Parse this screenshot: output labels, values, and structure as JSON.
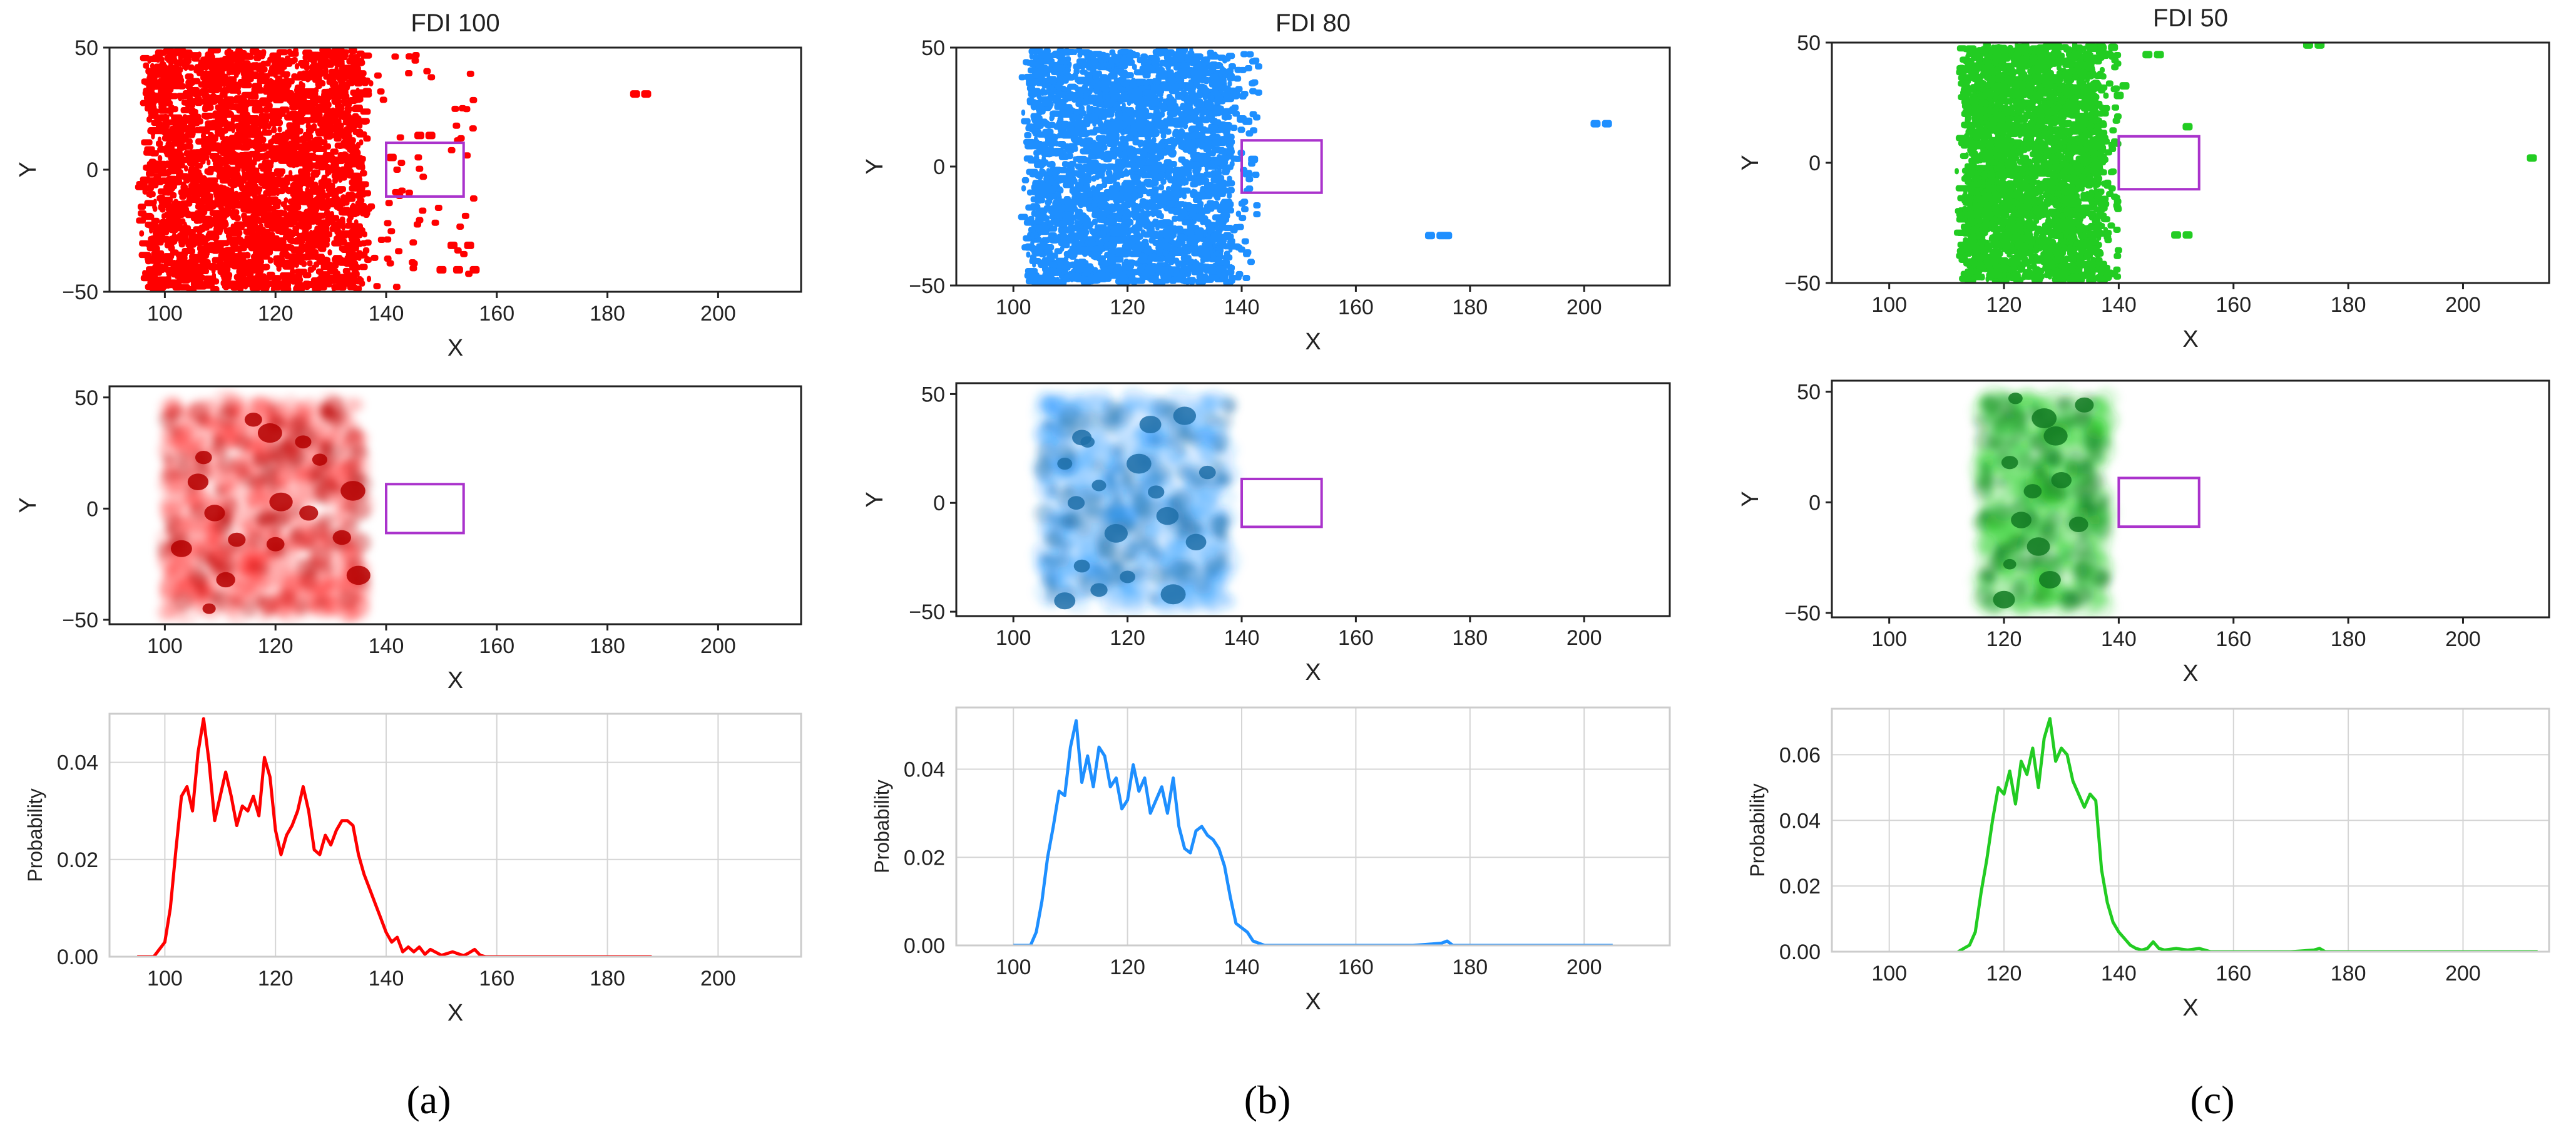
{
  "colors": {
    "red": "#ff0000",
    "blue": "#1e8fff",
    "green": "#22cc22",
    "darkred": "#b40000",
    "darkblue": "#1f6fa8",
    "darkgreen": "#127a22",
    "rect": "#aa33cc"
  },
  "chart_data": [
    {
      "panel": "a",
      "panel_label": "(a)",
      "color": "red",
      "type": "scatter",
      "title": "FDI 100",
      "xlabel": "X",
      "ylabel": "Y",
      "xlim": [
        90,
        215
      ],
      "ylim": [
        -50,
        50
      ],
      "xticks": [
        "100",
        "120",
        "140",
        "160",
        "180",
        "200"
      ],
      "yticks": [
        "50",
        "0",
        "−50"
      ],
      "main_x_range": [
        97,
        136
      ],
      "outlier_x_max": 156,
      "outliers": [
        [
          185,
          31
        ],
        [
          187,
          31
        ],
        [
          146,
          14
        ],
        [
          148,
          14
        ],
        [
          150,
          -41
        ],
        [
          153,
          -41
        ],
        [
          156,
          -41
        ],
        [
          155,
          -31
        ],
        [
          152,
          -31
        ],
        [
          141,
          5
        ]
      ],
      "box": {
        "x": [
          140,
          154
        ],
        "y": [
          -11,
          11
        ]
      }
    },
    {
      "panel": "a",
      "color": "red",
      "type": "heatmap",
      "xlabel": "X",
      "ylabel": "Y",
      "xlim": [
        90,
        215
      ],
      "ylim": [
        -52,
        55
      ],
      "xticks": [
        "100",
        "120",
        "140",
        "160",
        "180",
        "200"
      ],
      "yticks": [
        "50",
        "0",
        "−50"
      ],
      "main_x_range": [
        100,
        136
      ],
      "hotspots": [
        [
          107,
          23
        ],
        [
          106,
          12
        ],
        [
          109,
          -2
        ],
        [
          113,
          -14
        ],
        [
          120,
          -16
        ],
        [
          116,
          40
        ],
        [
          125,
          30
        ],
        [
          132,
          -13
        ],
        [
          108,
          -45
        ],
        [
          111,
          -32
        ],
        [
          121,
          3
        ],
        [
          128,
          22
        ],
        [
          126,
          -2
        ],
        [
          134,
          8
        ],
        [
          103,
          -18
        ],
        [
          119,
          34
        ],
        [
          135,
          -30
        ]
      ],
      "box": {
        "x": [
          140,
          154
        ],
        "y": [
          -11,
          11
        ]
      }
    },
    {
      "panel": "a",
      "color": "red",
      "type": "line",
      "xlabel": "X",
      "ylabel": "Probability",
      "xlim": [
        90,
        215
      ],
      "ylim": [
        0,
        0.05
      ],
      "xticks": [
        "100",
        "120",
        "140",
        "160",
        "180",
        "200"
      ],
      "yticks": [
        "0.00",
        "0.02",
        "0.04"
      ],
      "grid": true,
      "x": [
        95,
        98,
        100,
        101,
        102,
        103,
        104,
        105,
        106,
        107,
        108,
        109,
        110,
        111,
        112,
        113,
        114,
        115,
        116,
        117,
        118,
        119,
        120,
        121,
        122,
        123,
        124,
        125,
        126,
        127,
        128,
        129,
        130,
        131,
        132,
        133,
        134,
        135,
        136,
        137,
        138,
        139,
        140,
        141,
        142,
        143,
        144,
        145,
        146,
        147,
        148,
        150,
        152,
        154,
        155,
        156,
        157,
        158,
        160,
        165,
        170,
        175,
        180,
        185,
        188
      ],
      "values": [
        0.0,
        0.0,
        0.003,
        0.01,
        0.022,
        0.033,
        0.035,
        0.03,
        0.042,
        0.049,
        0.04,
        0.028,
        0.033,
        0.038,
        0.033,
        0.027,
        0.031,
        0.03,
        0.033,
        0.029,
        0.041,
        0.037,
        0.026,
        0.021,
        0.025,
        0.027,
        0.03,
        0.035,
        0.03,
        0.022,
        0.021,
        0.025,
        0.023,
        0.026,
        0.028,
        0.028,
        0.027,
        0.021,
        0.017,
        0.014,
        0.011,
        0.008,
        0.005,
        0.003,
        0.004,
        0.001,
        0.002,
        0.001,
        0.002,
        0.0005,
        0.0015,
        0.0003,
        0.001,
        0.0002,
        0.0008,
        0.0015,
        0.0003,
        0.0,
        0.0,
        0.0,
        0.0,
        0.0,
        0.0,
        0.0,
        0.0
      ]
    },
    {
      "panel": "b",
      "panel_label": "(b)",
      "color": "blue",
      "type": "scatter",
      "title": "FDI 80",
      "xlabel": "X",
      "ylabel": "Y",
      "xlim": [
        90,
        215
      ],
      "ylim": [
        -50,
        50
      ],
      "xticks": [
        "100",
        "120",
        "140",
        "160",
        "180",
        "200"
      ],
      "yticks": [
        "50",
        "0",
        "−50"
      ],
      "main_x_range": [
        103,
        138
      ],
      "outlier_x_max": 143,
      "outliers": [
        [
          202,
          18
        ],
        [
          204,
          18
        ],
        [
          173,
          -29
        ],
        [
          175,
          -29
        ],
        [
          176,
          -29
        ],
        [
          141,
          19
        ],
        [
          142,
          3
        ],
        [
          141,
          -3
        ],
        [
          140,
          20
        ]
      ],
      "box": {
        "x": [
          140,
          154
        ],
        "y": [
          -11,
          11
        ]
      }
    },
    {
      "panel": "b",
      "color": "blue",
      "type": "heatmap",
      "xlabel": "X",
      "ylabel": "Y",
      "xlim": [
        90,
        215
      ],
      "ylim": [
        -52,
        55
      ],
      "xticks": [
        "100",
        "120",
        "140",
        "160",
        "180",
        "200"
      ],
      "yticks": [
        "50",
        "0",
        "−50"
      ],
      "main_x_range": [
        105,
        138
      ],
      "hotspots": [
        [
          112,
          30
        ],
        [
          113,
          28
        ],
        [
          109,
          18
        ],
        [
          115,
          8
        ],
        [
          111,
          0
        ],
        [
          118,
          -14
        ],
        [
          112,
          -29
        ],
        [
          115,
          -40
        ],
        [
          109,
          -45
        ],
        [
          122,
          18
        ],
        [
          125,
          5
        ],
        [
          127,
          -6
        ],
        [
          130,
          40
        ],
        [
          124,
          36
        ],
        [
          132,
          -18
        ],
        [
          128,
          -42
        ],
        [
          134,
          14
        ],
        [
          120,
          -34
        ]
      ],
      "box": {
        "x": [
          140,
          154
        ],
        "y": [
          -11,
          11
        ]
      }
    },
    {
      "panel": "b",
      "color": "blue",
      "type": "line",
      "xlabel": "X",
      "ylabel": "Probability",
      "xlim": [
        90,
        215
      ],
      "ylim": [
        0,
        0.054
      ],
      "xticks": [
        "100",
        "120",
        "140",
        "160",
        "180",
        "200"
      ],
      "yticks": [
        "0.00",
        "0.02",
        "0.04"
      ],
      "grid": true,
      "x": [
        100,
        103,
        104,
        105,
        106,
        107,
        108,
        109,
        110,
        111,
        112,
        113,
        114,
        115,
        116,
        117,
        118,
        119,
        120,
        121,
        122,
        123,
        124,
        125,
        126,
        127,
        128,
        129,
        130,
        131,
        132,
        133,
        134,
        135,
        136,
        137,
        138,
        139,
        140,
        141,
        142,
        143,
        144,
        146,
        150,
        160,
        170,
        175,
        176,
        177,
        180,
        190,
        200,
        205
      ],
      "values": [
        0.0,
        0.0,
        0.003,
        0.01,
        0.02,
        0.027,
        0.035,
        0.034,
        0.045,
        0.051,
        0.037,
        0.043,
        0.036,
        0.045,
        0.043,
        0.036,
        0.038,
        0.031,
        0.033,
        0.041,
        0.035,
        0.038,
        0.03,
        0.033,
        0.036,
        0.03,
        0.038,
        0.027,
        0.022,
        0.021,
        0.026,
        0.027,
        0.025,
        0.024,
        0.022,
        0.018,
        0.011,
        0.005,
        0.004,
        0.003,
        0.001,
        0.0005,
        0.0,
        0.0,
        0.0,
        0.0,
        0.0,
        0.0005,
        0.001,
        0.0,
        0.0,
        0.0,
        0.0,
        0.0
      ]
    },
    {
      "panel": "c",
      "panel_label": "(c)",
      "color": "green",
      "type": "scatter",
      "title": "FDI 50",
      "xlabel": "X",
      "ylabel": "Y",
      "xlim": [
        90,
        215
      ],
      "ylim": [
        -50,
        50
      ],
      "xticks": [
        "100",
        "120",
        "140",
        "160",
        "180",
        "200"
      ],
      "yticks": [
        "50",
        "0",
        "−50"
      ],
      "main_x_range": [
        113,
        137
      ],
      "outlier_x_max": 140,
      "outliers": [
        [
          173,
          49
        ],
        [
          175,
          49
        ],
        [
          212,
          2
        ],
        [
          152,
          15
        ],
        [
          150,
          -30
        ],
        [
          152,
          -30
        ],
        [
          147,
          45
        ],
        [
          145,
          45
        ],
        [
          141,
          32
        ],
        [
          139,
          48
        ],
        [
          140,
          28
        ]
      ],
      "box": {
        "x": [
          140,
          154
        ],
        "y": [
          -11,
          11
        ]
      }
    },
    {
      "panel": "c",
      "color": "green",
      "type": "heatmap",
      "xlabel": "X",
      "ylabel": "Y",
      "xlim": [
        90,
        215
      ],
      "ylim": [
        -52,
        55
      ],
      "xticks": [
        "100",
        "120",
        "140",
        "160",
        "180",
        "200"
      ],
      "yticks": [
        "50",
        "0",
        "−50"
      ],
      "main_x_range": [
        116,
        138
      ],
      "hotspots": [
        [
          122,
          47
        ],
        [
          127,
          38
        ],
        [
          121,
          18
        ],
        [
          125,
          5
        ],
        [
          123,
          -8
        ],
        [
          121,
          -28
        ],
        [
          126,
          -20
        ],
        [
          128,
          -35
        ],
        [
          129,
          30
        ],
        [
          130,
          10
        ],
        [
          133,
          -10
        ],
        [
          134,
          44
        ],
        [
          120,
          -44
        ]
      ],
      "box": {
        "x": [
          140,
          154
        ],
        "y": [
          -11,
          11
        ]
      }
    },
    {
      "panel": "c",
      "color": "green",
      "type": "line",
      "xlabel": "X",
      "ylabel": "Probability",
      "xlim": [
        90,
        215
      ],
      "ylim": [
        0,
        0.074
      ],
      "xticks": [
        "100",
        "120",
        "140",
        "160",
        "180",
        "200"
      ],
      "yticks": [
        "0.00",
        "0.02",
        "0.04",
        "0.06"
      ],
      "grid": true,
      "x": [
        112,
        114,
        115,
        116,
        117,
        118,
        119,
        120,
        121,
        122,
        123,
        124,
        125,
        126,
        127,
        128,
        129,
        130,
        131,
        132,
        133,
        134,
        135,
        136,
        137,
        138,
        139,
        140,
        141,
        142,
        143,
        144,
        145,
        146,
        147,
        148,
        150,
        152,
        154,
        156,
        160,
        170,
        174,
        175,
        176,
        180,
        200,
        213
      ],
      "values": [
        0.0,
        0.002,
        0.006,
        0.018,
        0.028,
        0.04,
        0.05,
        0.048,
        0.055,
        0.045,
        0.058,
        0.054,
        0.062,
        0.05,
        0.065,
        0.071,
        0.058,
        0.062,
        0.06,
        0.052,
        0.048,
        0.044,
        0.048,
        0.046,
        0.025,
        0.015,
        0.009,
        0.006,
        0.004,
        0.002,
        0.001,
        0.0005,
        0.001,
        0.003,
        0.001,
        0.0005,
        0.001,
        0.0005,
        0.001,
        0.0,
        0.0,
        0.0,
        0.0005,
        0.001,
        0.0,
        0.0,
        0.0,
        0.0
      ]
    }
  ]
}
